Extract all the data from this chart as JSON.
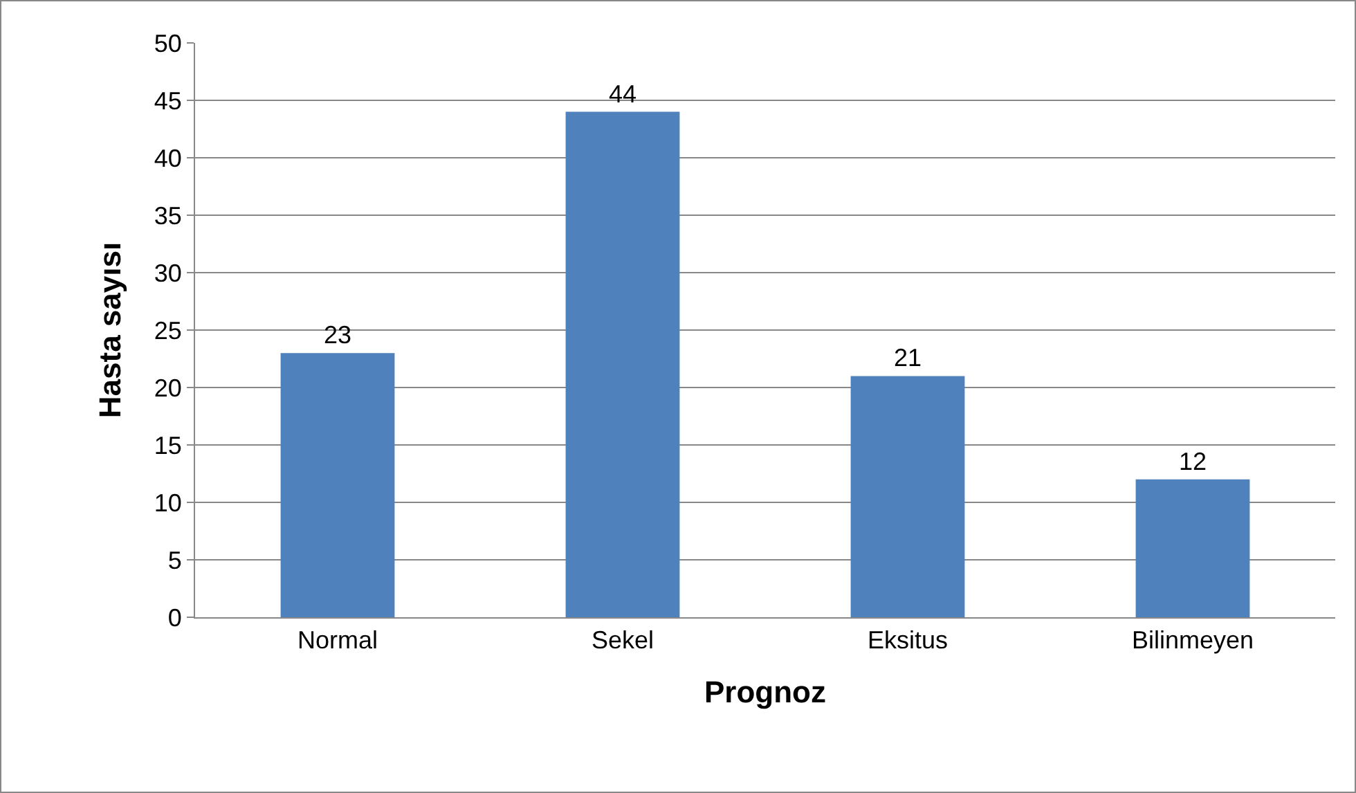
{
  "chart_data": {
    "type": "bar",
    "xlabel": "Prognoz",
    "ylabel": "Hasta sayısı",
    "categories": [
      "Normal",
      "Sekel",
      "Eksitus",
      "Bilinmeyen"
    ],
    "values": [
      23,
      44,
      21,
      12
    ],
    "color": "#4f81bd",
    "ylim": [
      0,
      50
    ],
    "yticks": [
      0,
      5,
      10,
      15,
      20,
      25,
      30,
      35,
      40,
      45,
      50
    ],
    "grid": "y",
    "data_labels": true
  }
}
